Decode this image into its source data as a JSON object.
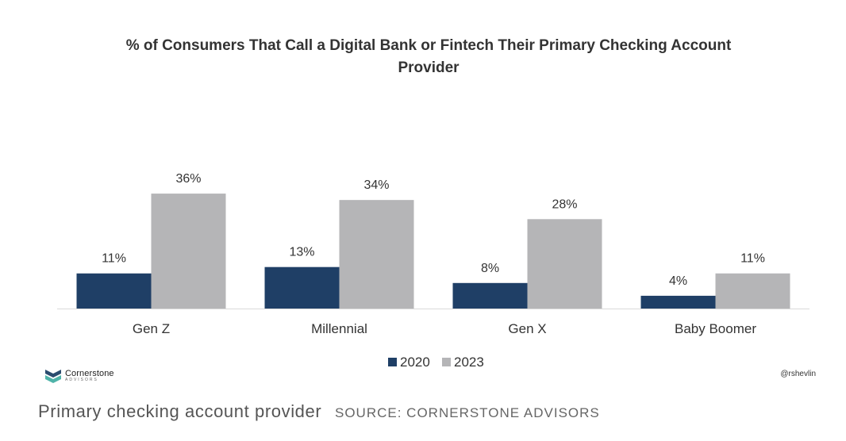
{
  "chart_data": {
    "type": "bar",
    "title": "% of Consumers That Call a Digital Bank or Fintech Their Primary Checking Account Provider",
    "categories": [
      "Gen Z",
      "Millennial",
      "Gen X",
      "Baby Boomer"
    ],
    "series": [
      {
        "name": "2020",
        "values": [
          11,
          13,
          8,
          4
        ],
        "labels": [
          "11%",
          "13%",
          "8%",
          "4%"
        ],
        "color": "#1f3f66"
      },
      {
        "name": "2023",
        "values": [
          36,
          34,
          28,
          11
        ],
        "labels": [
          "36%",
          "34%",
          "28%",
          "11%"
        ],
        "color": "#b5b5b7"
      }
    ],
    "ylim": [
      0,
      40
    ],
    "xlabel": "",
    "ylabel": "",
    "grid": false,
    "legend_position": "bottom-center"
  },
  "branding": {
    "logo_name": "Cornerstone",
    "logo_sub": "ADVISORS",
    "handle": "@rshevlin",
    "logo_colors": {
      "dark": "#2b4c6f",
      "teal": "#4fb3a9"
    }
  },
  "caption": {
    "text": "Primary checking account provider",
    "source": "SOURCE: CORNERSTONE ADVISORS"
  }
}
